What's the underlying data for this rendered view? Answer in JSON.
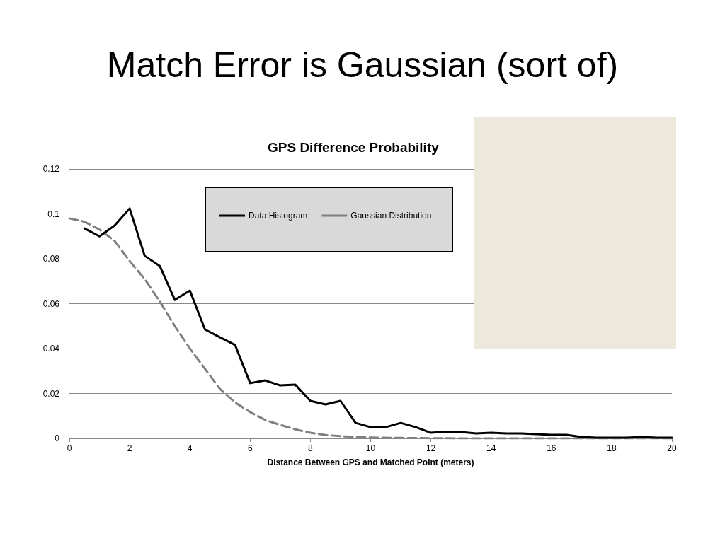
{
  "chart_data": {
    "type": "line",
    "title": "Match Error is Gaussian (sort of)",
    "subtitle": "GPS Difference Probability",
    "xlabel": "Distance Between GPS and Matched Point (meters)",
    "xlim": [
      0,
      20
    ],
    "xticks": [
      0,
      2,
      4,
      6,
      8,
      10,
      12,
      14,
      16,
      18,
      20
    ],
    "ylim": [
      0,
      0.12
    ],
    "yticks": [
      0,
      0.02,
      0.04,
      0.06,
      0.08,
      0.1,
      0.12
    ],
    "grid": "y",
    "legend": "top",
    "marker": "none",
    "series": [
      {
        "name": "Data Histogram",
        "color": "#000000",
        "line_style": "solid",
        "x": [
          0.5,
          1,
          1.5,
          2,
          2.5,
          3,
          3.5,
          4,
          4.5,
          5,
          5.5,
          6,
          6.5,
          7,
          7.5,
          8,
          8.5,
          9,
          9.5,
          10,
          10.5,
          11,
          11.5,
          12,
          12.5,
          13,
          13.5,
          14,
          14.5,
          15,
          15.5,
          16,
          16.5,
          17,
          17.5,
          18,
          18.5,
          19,
          19.5,
          20
        ],
        "values": [
          0.0935,
          0.09,
          0.0948,
          0.1024,
          0.0813,
          0.0768,
          0.0617,
          0.0658,
          0.0485,
          0.045,
          0.0416,
          0.0246,
          0.0258,
          0.0236,
          0.0239,
          0.0167,
          0.0151,
          0.0167,
          0.0069,
          0.005,
          0.005,
          0.0069,
          0.005,
          0.0025,
          0.003,
          0.0028,
          0.0022,
          0.0025,
          0.0022,
          0.0022,
          0.0019,
          0.0016,
          0.0016,
          0.0006,
          0.0003,
          0.0003,
          0.0003,
          0.0006,
          0.0003,
          0.0003
        ]
      },
      {
        "name": "Gaussian Distribution",
        "color": "#808080",
        "line_style": "dashed",
        "x": [
          0,
          0.5,
          1,
          1.5,
          2,
          2.5,
          3,
          3.5,
          4,
          4.5,
          5,
          5.5,
          6,
          6.5,
          7,
          7.5,
          8,
          8.5,
          9,
          9.5,
          10,
          11,
          12,
          13,
          14,
          15,
          16,
          17,
          18,
          19,
          20
        ],
        "values": [
          0.098,
          0.0965,
          0.093,
          0.088,
          0.079,
          0.071,
          0.061,
          0.05,
          0.04,
          0.031,
          0.022,
          0.016,
          0.0117,
          0.0082,
          0.006,
          0.004,
          0.0025,
          0.0015,
          0.001,
          0.0006,
          0.0004,
          0.0002,
          0.0001,
          0,
          0,
          0,
          0,
          0,
          0,
          0,
          0
        ]
      }
    ]
  }
}
